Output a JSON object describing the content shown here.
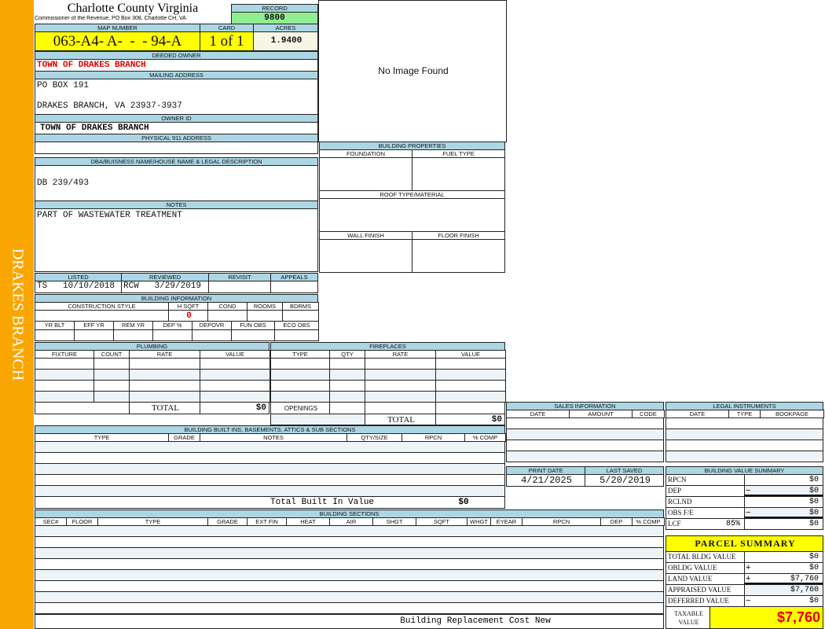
{
  "sidebar_label": "DRAKES BRANCH",
  "header": {
    "county": "Charlotte County Virginia",
    "subtitle": "Commissioner of the Revenue, PO Box 308, Charlotte CH, VA",
    "record_label": "RECORD",
    "record": "9800"
  },
  "parcel": {
    "map_number_label": "MAP NUMBER",
    "map_number": "063-A4- A-  -  - 94-A",
    "card_label": "CARD",
    "card": "1 of 1",
    "acres_label": "ACRES",
    "acres": "1.9400"
  },
  "owner": {
    "deeded_owner_label": "DEEDED OWNER",
    "deeded_owner": "TOWN OF DRAKES BRANCH",
    "mailing_label": "MAILING ADDRESS",
    "mailing_line1": "PO BOX 191",
    "mailing_line2": "DRAKES BRANCH, VA 23937-3937",
    "owner_id_label": "OWNER ID",
    "owner_id": "TOWN OF DRAKES BRANCH",
    "physical_label": "PHYSICAL 911 ADDRESS",
    "physical_address": ""
  },
  "image": {
    "text": "No Image Found"
  },
  "dba": {
    "label": "DBA/BUISNESS NAME/HOUSE NAME & LEGAL DESCRIPTION",
    "value": "DB 239/493"
  },
  "notes": {
    "label": "NOTES",
    "value": "PART OF WASTEWATER TREATMENT"
  },
  "building_properties": {
    "label": "BUILDING PROPERTIES",
    "foundation": "FOUNDATION",
    "fuel_type": "FUEL TYPE",
    "roof": "ROOF TYPE/MATERIAL",
    "wall": "WALL FINISH",
    "floor": "FLOOR FINISH"
  },
  "review": {
    "listed_label": "LISTED",
    "listed": "TS   10/10/2018",
    "reviewed_label": "REVIEWED",
    "reviewed": "RCW   3/29/2019",
    "revisit_label": "REVISIT",
    "appeals_label": "APPEALS"
  },
  "building_info": {
    "label": "BUILDING INFORMATION",
    "construction_style": "CONSTRUCTION STYLE",
    "hsqft": "H SQFT",
    "hsqft_value": "0",
    "cond": "COND",
    "rooms": "ROOMS",
    "bdrms": "BDRMS",
    "yr_blt": "YR BLT",
    "eff_yr": "EFF YR",
    "rem_yr": "REM YR",
    "dep_pct": "DEP %",
    "depovr": "DEPOVR",
    "fun_obs": "FUN OBS",
    "eco_obs": "ECO OBS"
  },
  "plumbing": {
    "label": "PLUMBING",
    "cols": [
      "FIXTURE",
      "COUNT",
      "RATE",
      "VALUE"
    ],
    "total_label": "TOTAL",
    "total": "$0"
  },
  "fireplaces": {
    "label": "FIREPLACES",
    "cols": [
      "TYPE",
      "QTY",
      "RATE",
      "VALUE"
    ],
    "openings_label": "OPENINGS",
    "total_label": "TOTAL",
    "total": "$0"
  },
  "built_ins": {
    "label": "BUILDING BUILT INS, BASEMENTS, ATTICS & SUB SECTIONS",
    "cols": [
      "TYPE",
      "GRADE",
      "NOTES",
      "QTY/SIZE",
      "RPCN",
      "% COMP"
    ],
    "total_label": "Total Built In Value",
    "total": "$0"
  },
  "sections": {
    "label": "BUILDING SECTIONS",
    "cols": [
      "SEC#",
      "FLOOR",
      "TYPE",
      "GRADE",
      "EXT FIN",
      "HEAT",
      "AIR",
      "SHGT",
      "SQFT",
      "WHGT",
      "EYEAR",
      "RPCN",
      "DEP",
      "% COMP"
    ],
    "footer": "Building Replacement Cost New"
  },
  "sales": {
    "label": "SALES INFORMATION",
    "cols": [
      "DATE",
      "AMOUNT",
      "CODE"
    ]
  },
  "legal": {
    "label": "LEGAL INSTRUMENTS",
    "cols": [
      "DATE",
      "TYPE",
      "BOOKPAGE"
    ]
  },
  "dates": {
    "print_label": "PRINT DATE",
    "print": "4/21/2025",
    "saved_label": "LAST SAVED",
    "saved": "5/20/2019"
  },
  "value_summary": {
    "label": "BUILDING VALUE SUMMARY",
    "rows": [
      {
        "label": "RPCN",
        "extra": "",
        "sign": "",
        "value": "$0"
      },
      {
        "label": "DEP",
        "extra": "",
        "sign": "−",
        "value": "$0"
      },
      {
        "label": "RCLND",
        "extra": "",
        "sign": "",
        "value": "$0"
      },
      {
        "label": "OBS F/E",
        "extra": "",
        "sign": "−",
        "value": "$0"
      },
      {
        "label": "LCF",
        "extra": "85%",
        "sign": "",
        "value": "$0"
      }
    ]
  },
  "parcel_summary": {
    "label": "PARCEL SUMMARY",
    "rows": [
      {
        "label": "TOTAL BLDG VALUE",
        "sign": "",
        "value": "$0"
      },
      {
        "label": "OBLDG VALUE",
        "sign": "+",
        "value": "$0"
      },
      {
        "label": "LAND VALUE",
        "sign": "+",
        "value": "$7,760"
      },
      {
        "label": "APPRAISED VALUE",
        "sign": "",
        "value": "$7,760"
      },
      {
        "label": "DEFERRED VALUE",
        "sign": "−",
        "value": "$0"
      }
    ],
    "taxable_label": "TAXABLE\nVALUE",
    "taxable": "$7,760"
  },
  "colors": {
    "sidebar": "#f9a602",
    "header": "#acd6e4",
    "highlight": "#ffff00",
    "record": "#90ee90",
    "alert": "#e00000"
  }
}
